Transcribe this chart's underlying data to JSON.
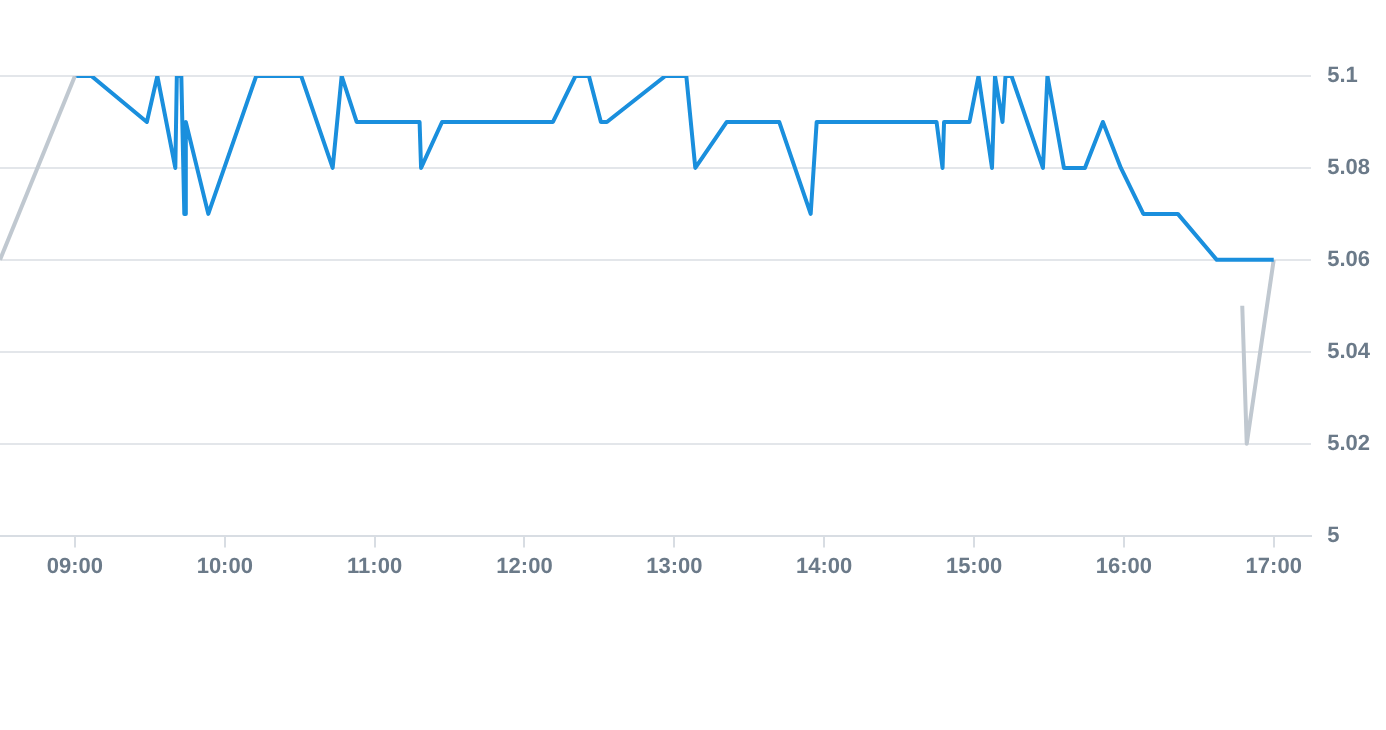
{
  "chart_data": {
    "type": "line",
    "xlim": [
      8.5,
      17.25
    ],
    "xticks": [
      {
        "value": 9,
        "label": "09:00"
      },
      {
        "value": 10,
        "label": "10:00"
      },
      {
        "value": 11,
        "label": "11:00"
      },
      {
        "value": 12,
        "label": "12:00"
      },
      {
        "value": 13,
        "label": "13:00"
      },
      {
        "value": 14,
        "label": "14:00"
      },
      {
        "value": 15,
        "label": "15:00"
      },
      {
        "value": 16,
        "label": "16:00"
      },
      {
        "value": 17,
        "label": "17:00"
      }
    ],
    "ylim": [
      5,
      5.1
    ],
    "yticks": [
      5,
      5.02,
      5.04,
      5.06,
      5.08,
      5.1
    ],
    "grid": "y",
    "marker": "none",
    "series": [
      {
        "color": "#c0c8d0",
        "x": [
          8.5,
          9.0
        ],
        "values": [
          5.06,
          5.1
        ]
      },
      {
        "color": "#1a8fdd",
        "x": [
          9.0,
          9.11,
          9.48,
          9.55,
          9.67,
          9.68,
          9.71,
          9.73,
          9.74,
          9.89,
          10.21,
          10.51,
          10.72,
          10.78,
          10.88,
          11.3,
          11.31,
          11.45,
          12.19,
          12.34,
          12.43,
          12.51,
          12.55,
          12.94,
          13.08,
          13.14,
          13.35,
          13.7,
          13.91,
          13.95,
          14.75,
          14.79,
          14.8,
          14.97,
          15.03,
          15.12,
          15.14,
          15.19,
          15.21,
          15.25,
          15.46,
          15.49,
          15.6,
          15.74,
          15.86,
          15.98,
          16.13,
          16.36,
          16.62,
          17.0
        ],
        "values": [
          5.1,
          5.1,
          5.09,
          5.1,
          5.08,
          5.1,
          5.1,
          5.07,
          5.09,
          5.07,
          5.1,
          5.1,
          5.08,
          5.1,
          5.09,
          5.09,
          5.08,
          5.09,
          5.09,
          5.1,
          5.1,
          5.09,
          5.09,
          5.1,
          5.1,
          5.08,
          5.09,
          5.09,
          5.07,
          5.09,
          5.09,
          5.08,
          5.09,
          5.09,
          5.1,
          5.08,
          5.1,
          5.09,
          5.1,
          5.1,
          5.08,
          5.1,
          5.08,
          5.08,
          5.09,
          5.08,
          5.07,
          5.07,
          5.06,
          5.06
        ]
      },
      {
        "color": "#c0c8d0",
        "x": [
          16.79,
          16.82,
          17.0
        ],
        "values": [
          5.05,
          5.02,
          5.06
        ]
      }
    ]
  }
}
